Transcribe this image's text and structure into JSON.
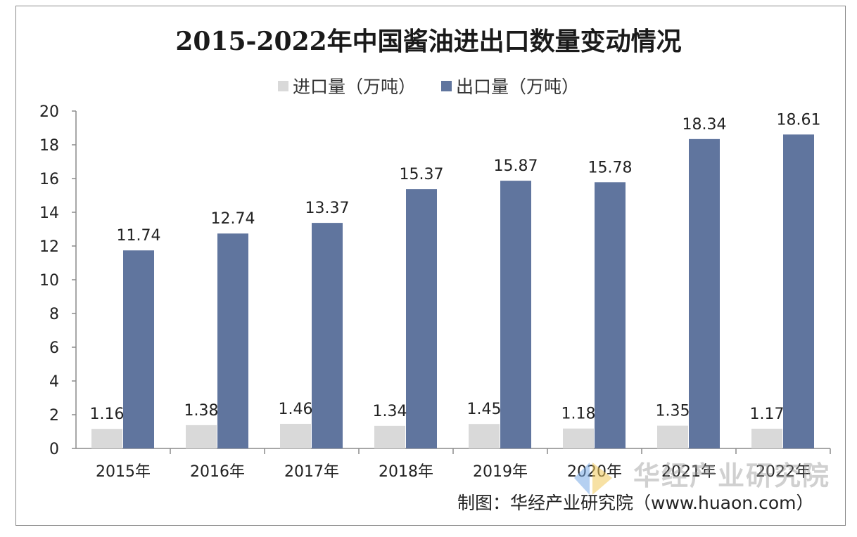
{
  "chart_data": {
    "type": "bar",
    "title": "2015-2022年中国酱油进出口数量变动情况",
    "categories": [
      "2015年",
      "2016年",
      "2017年",
      "2018年",
      "2019年",
      "2020年",
      "2021年",
      "2022年"
    ],
    "series": [
      {
        "name": "进口量（万吨）",
        "values": [
          1.16,
          1.38,
          1.46,
          1.34,
          1.45,
          1.18,
          1.35,
          1.17
        ],
        "color": "#d9d9d9"
      },
      {
        "name": "出口量（万吨）",
        "values": [
          11.74,
          12.74,
          13.37,
          15.37,
          15.87,
          15.78,
          18.34,
          18.61
        ],
        "color": "#60759e"
      }
    ],
    "ylim": [
      0,
      20
    ],
    "yticks": [
      0,
      2,
      4,
      6,
      8,
      10,
      12,
      14,
      16,
      18,
      20
    ],
    "xlabel": "",
    "ylabel": "",
    "legend_position": "top-center",
    "grid": false
  },
  "watermark": "华经产业研究院",
  "source": "制图：华经产业研究院（www.huaon.com）"
}
